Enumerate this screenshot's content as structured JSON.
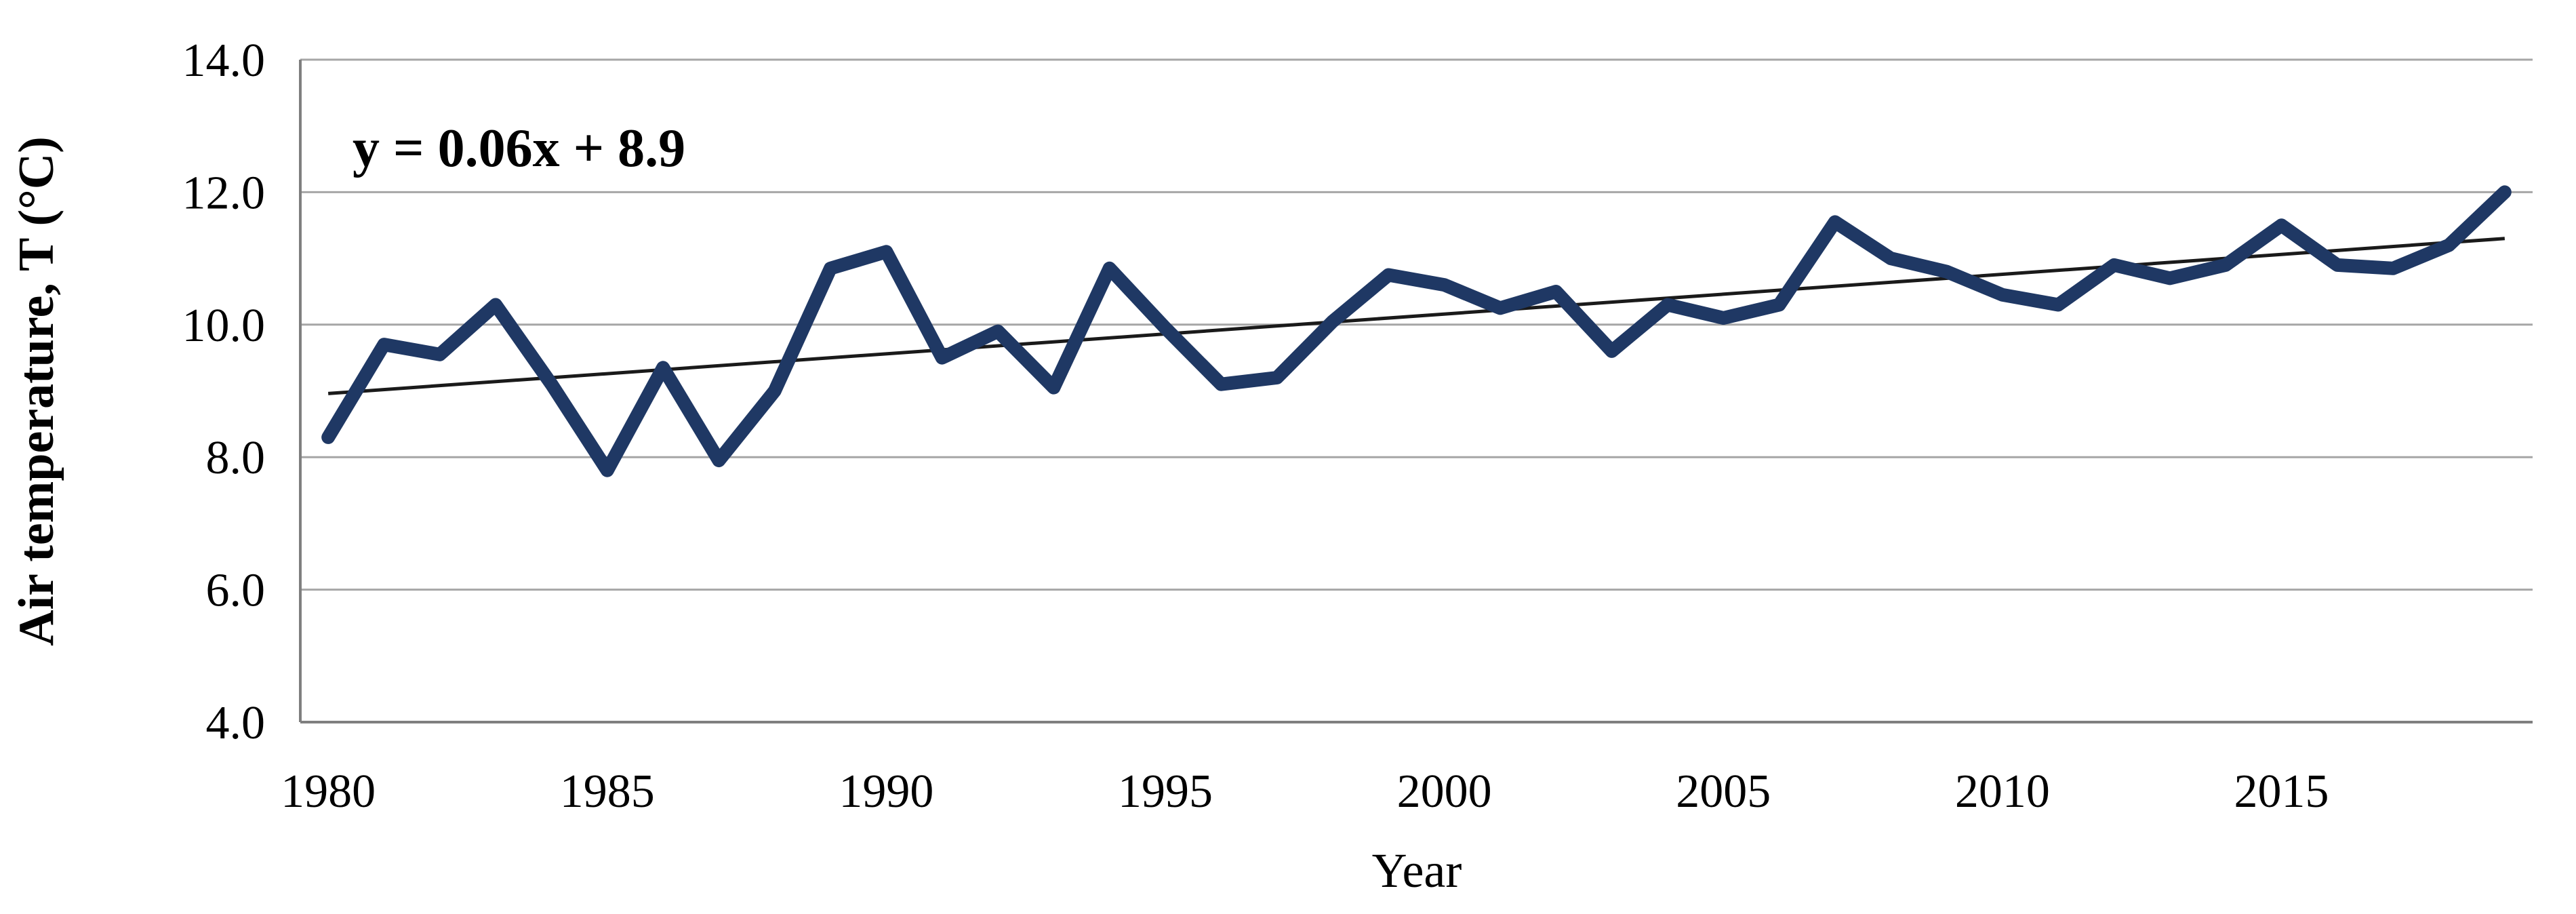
{
  "chart_data": {
    "type": "line",
    "title": "",
    "xlabel": "Year",
    "ylabel": "Air temperature, T (°C)",
    "equation_label": "y = 0.06x + 8.9",
    "x": [
      1980,
      1981,
      1982,
      1983,
      1984,
      1985,
      1986,
      1987,
      1988,
      1989,
      1990,
      1991,
      1992,
      1993,
      1994,
      1995,
      1996,
      1997,
      1998,
      1999,
      2000,
      2001,
      2002,
      2003,
      2004,
      2005,
      2006,
      2007,
      2008,
      2009,
      2010,
      2011,
      2012,
      2013,
      2014,
      2015,
      2016,
      2017,
      2018,
      2019
    ],
    "series": [
      {
        "name": "Air temperature",
        "values": [
          8.3,
          9.7,
          9.55,
          10.3,
          9.1,
          7.8,
          9.35,
          7.95,
          9.0,
          10.85,
          11.1,
          9.5,
          9.9,
          9.05,
          10.85,
          9.95,
          9.1,
          9.2,
          10.05,
          10.75,
          10.6,
          10.25,
          10.5,
          9.6,
          10.3,
          10.1,
          10.3,
          11.55,
          11.0,
          10.8,
          10.45,
          10.3,
          10.9,
          10.7,
          10.9,
          11.5,
          10.9,
          10.85,
          11.2,
          12.0
        ]
      }
    ],
    "trend": {
      "slope": 0.06,
      "intercept": 8.9
    },
    "ylim": [
      4.0,
      14.0
    ],
    "ytick_values": [
      4.0,
      6.0,
      8.0,
      10.0,
      12.0,
      14.0
    ],
    "ytick_labels": [
      "4.0",
      "6.0",
      "8.0",
      "10.0",
      "12.0",
      "14.0"
    ],
    "xtick_values": [
      1980,
      1985,
      1990,
      1995,
      2000,
      2005,
      2010,
      2015
    ],
    "xtick_labels": [
      "1980",
      "1985",
      "1990",
      "1995",
      "2000",
      "2005",
      "2010",
      "2015"
    ],
    "grid": true,
    "legend": "none",
    "colors": {
      "line": "#1F3864",
      "trendline": "#1A1A1A",
      "gridline": "#A6A6A6",
      "axisline": "#7F7F7F",
      "text": "#000000",
      "background": "#FFFFFF"
    }
  }
}
